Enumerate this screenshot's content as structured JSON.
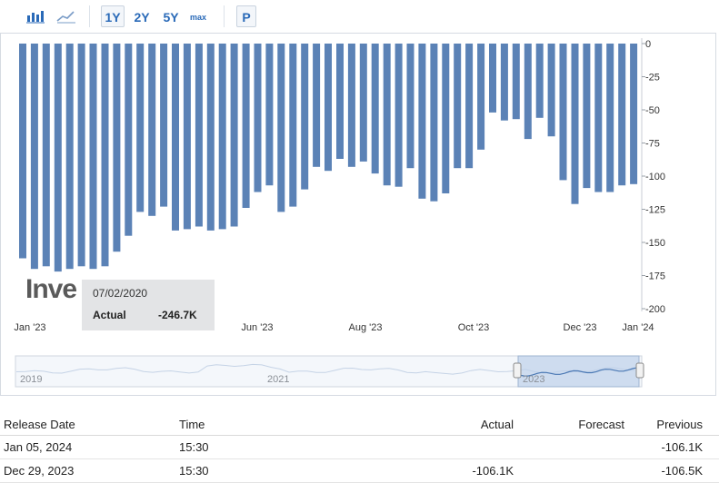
{
  "toolbar": {
    "bar_chart_icon": "bar-chart-icon",
    "line_chart_icon": "line-chart-icon",
    "ranges": [
      "1Y",
      "2Y",
      "5Y",
      "max"
    ],
    "active_range": "1Y",
    "p_label": "P"
  },
  "chart_data": {
    "type": "bar",
    "bar_color": "#5b82b6",
    "bar_hover_color": "#a9bcd6",
    "yticks": [
      0,
      -25,
      -50,
      -75,
      -100,
      -125,
      -150,
      -175,
      -200
    ],
    "ylim": [
      -200,
      0
    ],
    "xtick_labels": [
      "Jan '23",
      "Jun '23",
      "Aug '23",
      "Oct '23",
      "Dec '23",
      "Jan '24"
    ],
    "values": [
      -162,
      -170,
      -168,
      -172,
      -170,
      -168,
      -170,
      -168,
      -157,
      -145,
      -127,
      -130,
      -123,
      -141,
      -140,
      -138,
      -141,
      -140,
      -138,
      -124,
      -112,
      -107,
      -127,
      -123,
      -110,
      -93,
      -96,
      -87,
      -93,
      -89,
      -98,
      -107,
      -108,
      -94,
      -117,
      -119,
      -113,
      -94,
      -94,
      -80,
      -52,
      -58,
      -57,
      -72,
      -56,
      -70,
      -103,
      -121,
      -109,
      -112,
      -112,
      -107,
      -106
    ],
    "highlighted_from": 1,
    "highlighted_to": 7
  },
  "tooltip": {
    "date": "07/02/2020",
    "label": "Actual",
    "value": "-246.7K"
  },
  "watermark": "Inve",
  "navigator": {
    "labels": [
      "2019",
      "2021",
      "2023"
    ]
  },
  "table": {
    "headers": [
      "Release Date",
      "Time",
      "Actual",
      "Forecast",
      "Previous"
    ],
    "rows": [
      [
        "Jan 05, 2024",
        "15:30",
        "",
        "",
        "-106.1K"
      ],
      [
        "Dec 29, 2023",
        "15:30",
        "-106.1K",
        "",
        "-106.5K"
      ]
    ]
  }
}
